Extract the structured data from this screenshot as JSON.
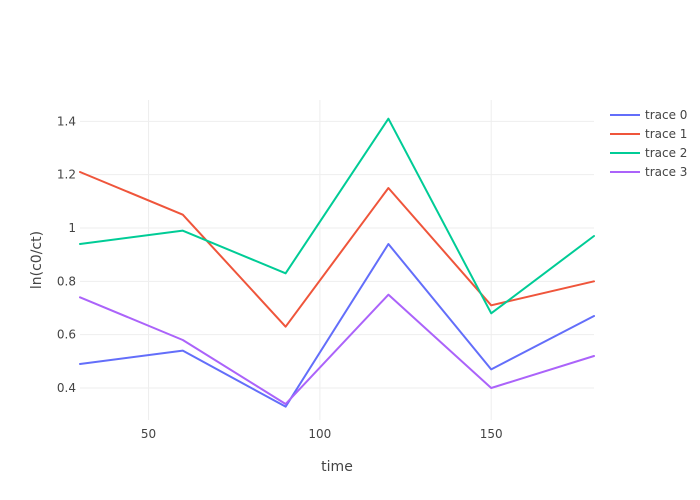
{
  "chart_data": {
    "type": "line",
    "title": "",
    "xlabel": "time",
    "ylabel": "ln(c0/ct)",
    "xlim": [
      30,
      180
    ],
    "ylim": [
      0.28,
      1.48
    ],
    "x_ticks": [
      50,
      100,
      150
    ],
    "y_ticks": [
      0.4,
      0.6,
      0.8,
      1,
      1.2,
      1.4
    ],
    "x_tick_labels": [
      "50",
      "100",
      "150"
    ],
    "y_tick_labels": [
      "0.4",
      "0.6",
      "0.8",
      "1",
      "1.2",
      "1.4"
    ],
    "grid": true,
    "legend_position": "top-right",
    "x": [
      30,
      60,
      90,
      120,
      150,
      180
    ],
    "series": [
      {
        "name": "trace 0",
        "color": "#636efa",
        "values": [
          0.49,
          0.54,
          0.33,
          0.94,
          0.47,
          0.67
        ]
      },
      {
        "name": "trace 1",
        "color": "#ef553b",
        "values": [
          1.21,
          1.05,
          0.63,
          1.15,
          0.71,
          0.8
        ]
      },
      {
        "name": "trace 2",
        "color": "#00cc96",
        "values": [
          0.94,
          0.99,
          0.83,
          1.41,
          0.68,
          0.97
        ]
      },
      {
        "name": "trace 3",
        "color": "#ab63fa",
        "values": [
          0.74,
          0.58,
          0.34,
          0.75,
          0.4,
          0.52
        ]
      }
    ]
  }
}
